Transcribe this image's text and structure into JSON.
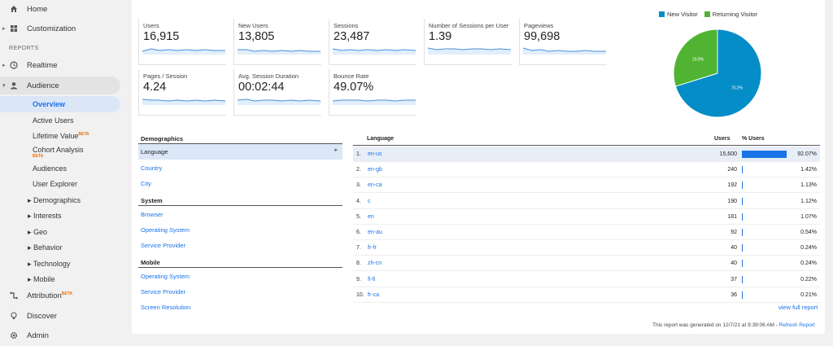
{
  "sidebar": {
    "home": "Home",
    "customization": "Customization",
    "reports_header": "REPORTS",
    "realtime": "Realtime",
    "audience": "Audience",
    "overview": "Overview",
    "active_users": "Active Users",
    "lifetime_value": "Lifetime Value",
    "lifetime_value_badge": "BETA",
    "cohort_analysis": "Cohort Analysis",
    "cohort_analysis_badge": "BETA",
    "audiences": "Audiences",
    "user_explorer": "User Explorer",
    "demographics": "Demographics",
    "interests": "Interests",
    "geo": "Geo",
    "behavior": "Behavior",
    "technology": "Technology",
    "mobile": "Mobile",
    "attribution": "Attribution",
    "attribution_badge": "BETA",
    "discover": "Discover",
    "admin": "Admin"
  },
  "metrics": [
    {
      "label": "Users",
      "value": "16,915"
    },
    {
      "label": "New Users",
      "value": "13,805"
    },
    {
      "label": "Sessions",
      "value": "23,487"
    },
    {
      "label": "Number of Sessions per User",
      "value": "1.39"
    },
    {
      "label": "Pageviews",
      "value": "99,698"
    },
    {
      "label": "Pages / Session",
      "value": "4.24"
    },
    {
      "label": "Avg. Session Duration",
      "value": "00:02:44"
    },
    {
      "label": "Bounce Rate",
      "value": "49.07%"
    }
  ],
  "chart_data": {
    "type": "pie",
    "legend": [
      "New Visitor",
      "Returning Visitor"
    ],
    "values": [
      70.2,
      29.8
    ],
    "labels": [
      "70.2%",
      "29.8%"
    ],
    "colors": [
      "#058dc7",
      "#50b432"
    ],
    "legend_position": "top"
  },
  "dimensions": {
    "demographics_header": "Demographics",
    "language": "Language",
    "country": "Country",
    "city": "City",
    "system_header": "System",
    "browser": "Browser",
    "operating_system": "Operating System",
    "service_provider": "Service Provider",
    "mobile_header": "Mobile",
    "mobile_operating_system": "Operating System",
    "mobile_service_provider": "Service Provider",
    "screen_resolution": "Screen Resolution"
  },
  "language_table": {
    "col_language": "Language",
    "col_users": "Users",
    "col_pct_users": "% Users",
    "rows": [
      {
        "num": "1.",
        "lang": "en-us",
        "users": "15,600",
        "pct": "92.07%",
        "share": 92.07
      },
      {
        "num": "2.",
        "lang": "en-gb",
        "users": "240",
        "pct": "1.42%",
        "share": 1.42
      },
      {
        "num": "3.",
        "lang": "en-ca",
        "users": "192",
        "pct": "1.13%",
        "share": 1.13
      },
      {
        "num": "4.",
        "lang": "c",
        "users": "190",
        "pct": "1.12%",
        "share": 1.12
      },
      {
        "num": "5.",
        "lang": "en",
        "users": "181",
        "pct": "1.07%",
        "share": 1.07
      },
      {
        "num": "6.",
        "lang": "en-au",
        "users": "92",
        "pct": "0.54%",
        "share": 0.54
      },
      {
        "num": "7.",
        "lang": "fr-fr",
        "users": "40",
        "pct": "0.24%",
        "share": 0.24
      },
      {
        "num": "8.",
        "lang": "zh-cn",
        "users": "40",
        "pct": "0.24%",
        "share": 0.24
      },
      {
        "num": "9.",
        "lang": "fi-fi",
        "users": "37",
        "pct": "0.22%",
        "share": 0.22
      },
      {
        "num": "10.",
        "lang": "fr-ca",
        "users": "36",
        "pct": "0.21%",
        "share": 0.21
      }
    ],
    "view_full_report": "view full report"
  },
  "footer": {
    "generated_text": "This report was generated on 12/7/21 at 9:39:06 AM - ",
    "refresh_link": "Refresh Report"
  },
  "colors": {
    "accent": "#1a73e8",
    "pie_new": "#058dc7",
    "pie_returning": "#50b432"
  }
}
